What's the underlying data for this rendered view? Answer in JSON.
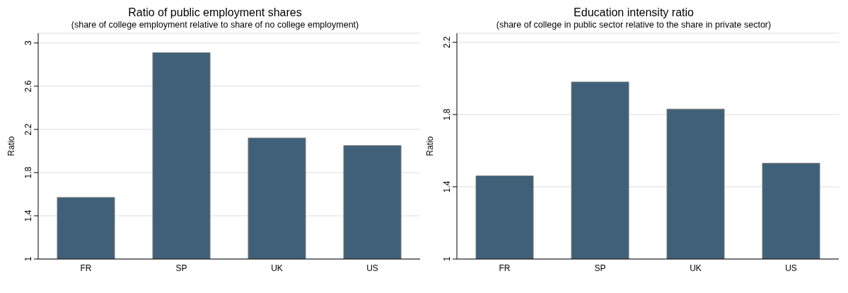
{
  "chart_data": [
    {
      "type": "bar",
      "title": "Ratio of public employment shares",
      "subtitle": "(share of college employment relative to share of no college employment)",
      "ylabel": "Ratio",
      "categories": [
        "FR",
        "SP",
        "UK",
        "US"
      ],
      "series": [
        {
          "color": "#3f6078",
          "values": [
            1.57,
            2.91,
            2.12,
            2.05
          ]
        }
      ],
      "ylim": [
        1,
        3.09
      ],
      "yticks": [
        1,
        1.4,
        1.8,
        2.2,
        2.6,
        3
      ],
      "grid": "y"
    },
    {
      "type": "bar",
      "title": "Education intensity ratio",
      "subtitle": "(share of college in public sector relative to the share in private sector)",
      "ylabel": "Ratio",
      "categories": [
        "FR",
        "SP",
        "UK",
        "US"
      ],
      "series": [
        {
          "color": "#3f6078",
          "values": [
            1.46,
            1.98,
            1.83,
            1.53
          ]
        }
      ],
      "ylim": [
        1,
        2.25
      ],
      "yticks": [
        1,
        1.4,
        1.8,
        2.2
      ],
      "grid": "y"
    }
  ]
}
